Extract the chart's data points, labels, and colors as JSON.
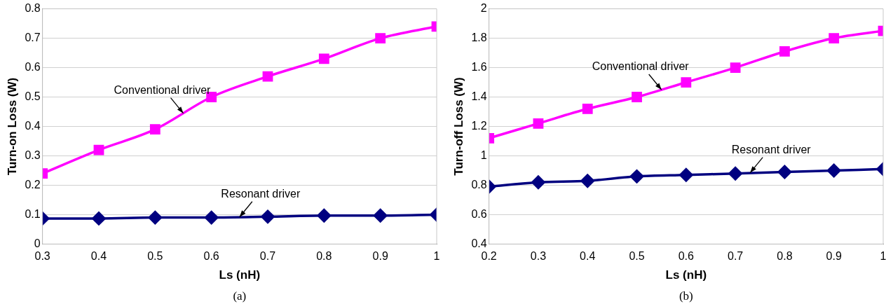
{
  "chart_data": [
    {
      "type": "line",
      "xlabel": "Ls (nH)",
      "ylabel": "Turn-on Loss (W)",
      "x": [
        0.3,
        0.4,
        0.5,
        0.6,
        0.7,
        0.8,
        0.9,
        1
      ],
      "xlim": [
        0.3,
        1
      ],
      "xticks": [
        0.3,
        0.4,
        0.5,
        0.6,
        0.7,
        0.8,
        0.9,
        1
      ],
      "ylim": [
        0,
        0.8
      ],
      "yticks": [
        0,
        0.1,
        0.2,
        0.3,
        0.4,
        0.5,
        0.6,
        0.7,
        0.8
      ],
      "grid": "y",
      "legend": false,
      "series": [
        {
          "color": "#ff00ff",
          "marker": "square",
          "values": [
            0.24,
            0.32,
            0.39,
            0.5,
            0.57,
            0.63,
            0.7,
            0.74
          ]
        },
        {
          "color": "#000080",
          "marker": "diamond",
          "values": [
            0.087,
            0.087,
            0.09,
            0.09,
            0.093,
            0.097,
            0.097,
            0.1
          ]
        }
      ],
      "annotations": [
        {
          "text": "Conventional driver",
          "x": 0.55,
          "y": 0.445
        },
        {
          "text": "Resonant driver",
          "x": 0.65,
          "y": 0.092
        },
        "(a)"
      ]
    },
    {
      "type": "line",
      "xlabel": "Ls (nH)",
      "ylabel": "Turn-off Loss (W)",
      "x": [
        0.2,
        0.3,
        0.4,
        0.5,
        0.6,
        0.7,
        0.8,
        0.9,
        1
      ],
      "xlim": [
        0.2,
        1
      ],
      "xticks": [
        0.2,
        0.3,
        0.4,
        0.5,
        0.6,
        0.7,
        0.8,
        0.9,
        1
      ],
      "ylim": [
        0.4,
        2
      ],
      "yticks": [
        0.4,
        0.6,
        0.8,
        1,
        1.2,
        1.4,
        1.6,
        1.8,
        2
      ],
      "grid": "y",
      "legend": false,
      "series": [
        {
          "color": "#ff00ff",
          "marker": "square",
          "values": [
            1.12,
            1.22,
            1.32,
            1.4,
            1.5,
            1.6,
            1.71,
            1.8,
            1.85
          ]
        },
        {
          "color": "#000080",
          "marker": "diamond",
          "values": [
            0.79,
            0.82,
            0.83,
            0.86,
            0.87,
            0.88,
            0.89,
            0.9,
            0.91
          ]
        }
      ],
      "annotations": [
        {
          "text": "Conventional driver",
          "x": 0.55,
          "y": 1.45
        },
        {
          "text": "Resonant driver",
          "x": 0.73,
          "y": 0.885
        },
        "(b)"
      ]
    }
  ]
}
